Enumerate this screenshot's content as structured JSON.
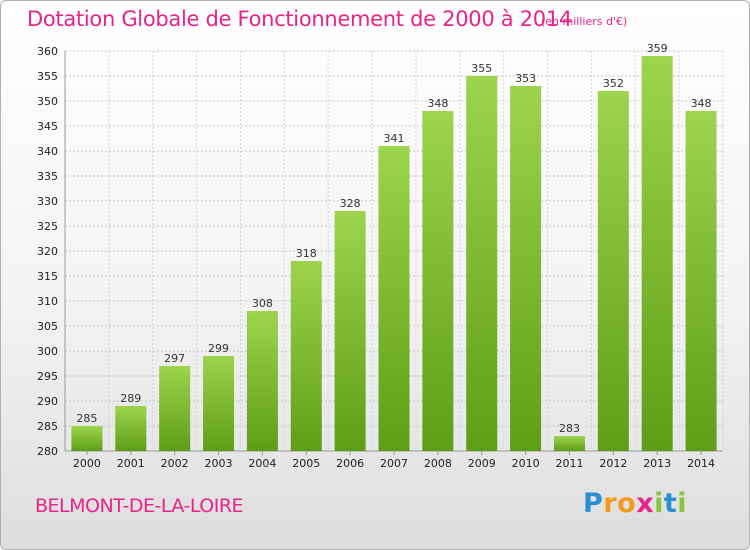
{
  "title": "Dotation Globale de Fonctionnement de 2000 à 2014",
  "subtitle": "(en milliers d'€)",
  "city": "BELMONT-DE-LA-LOIRE",
  "logo": {
    "letters": [
      "P",
      "r",
      "o",
      "x",
      "i",
      "t",
      "i"
    ],
    "colors": [
      "#2a8fd0",
      "#f39a1e",
      "#f39a1e",
      "#e8238a",
      "#8ac43f",
      "#2a8fd0",
      "#8ac43f"
    ]
  },
  "colors": {
    "bar_top": "#9dd44e",
    "bar_bottom": "#5e9e16",
    "accent": "#e8238a"
  },
  "chart_data": {
    "type": "bar",
    "title": "Dotation Globale de Fonctionnement de 2000 à 2014",
    "subtitle": "(en milliers d'€)",
    "categories": [
      "2000",
      "2001",
      "2002",
      "2003",
      "2004",
      "2005",
      "2006",
      "2007",
      "2008",
      "2009",
      "2010",
      "2011",
      "2012",
      "2013",
      "2014"
    ],
    "values": [
      285,
      289,
      297,
      299,
      308,
      318,
      328,
      341,
      348,
      355,
      353,
      283,
      352,
      359,
      348
    ],
    "ylim": [
      280,
      360
    ],
    "yticks": [
      280,
      285,
      290,
      295,
      300,
      305,
      310,
      315,
      320,
      325,
      330,
      335,
      340,
      345,
      350,
      355,
      360
    ],
    "grid": true,
    "legend": "none"
  }
}
